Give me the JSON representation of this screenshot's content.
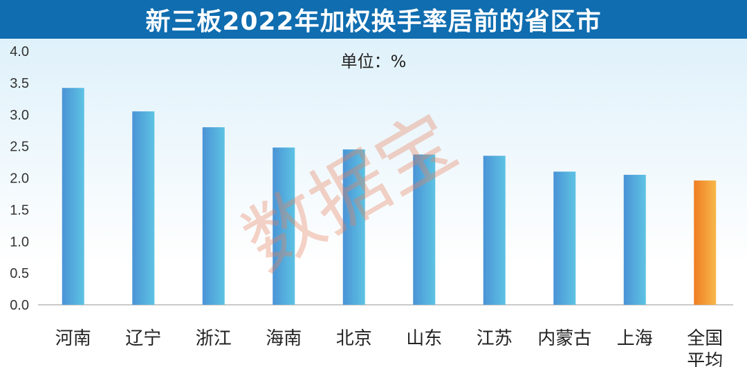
{
  "chart_data": {
    "type": "bar",
    "title": "新三板2022年加权换手率居前的省区市",
    "unit_note": "单位：%",
    "categories": [
      "河南",
      "辽宁",
      "浙江",
      "海南",
      "北京",
      "山东",
      "江苏",
      "内蒙古",
      "上海",
      "全国平均"
    ],
    "category_lines": [
      [
        "河南"
      ],
      [
        "辽宁"
      ],
      [
        "浙江"
      ],
      [
        "海南"
      ],
      [
        "北京"
      ],
      [
        "山东"
      ],
      [
        "江苏"
      ],
      [
        "内蒙古"
      ],
      [
        "上海"
      ],
      [
        "全国",
        "平均"
      ]
    ],
    "values": [
      3.42,
      3.05,
      2.8,
      2.48,
      2.45,
      2.37,
      2.35,
      2.1,
      2.05,
      1.96
    ],
    "highlight_index": 9,
    "ylim": [
      0,
      4.0
    ],
    "yticks": [
      "0.0",
      "0.5",
      "1.0",
      "1.5",
      "2.0",
      "2.5",
      "3.0",
      "3.5",
      "4.0"
    ],
    "grid": false,
    "colors": {
      "title_bg": "#0f6db0",
      "bar_top": "#5ec3e3",
      "bar_bottom": "#4a93d6",
      "highlight_top": "#f7b84a",
      "highlight_bottom": "#ef7d22",
      "bg_top": "#dff1fa",
      "bg_bottom": "#ffffff"
    }
  },
  "watermark": "数据宝"
}
